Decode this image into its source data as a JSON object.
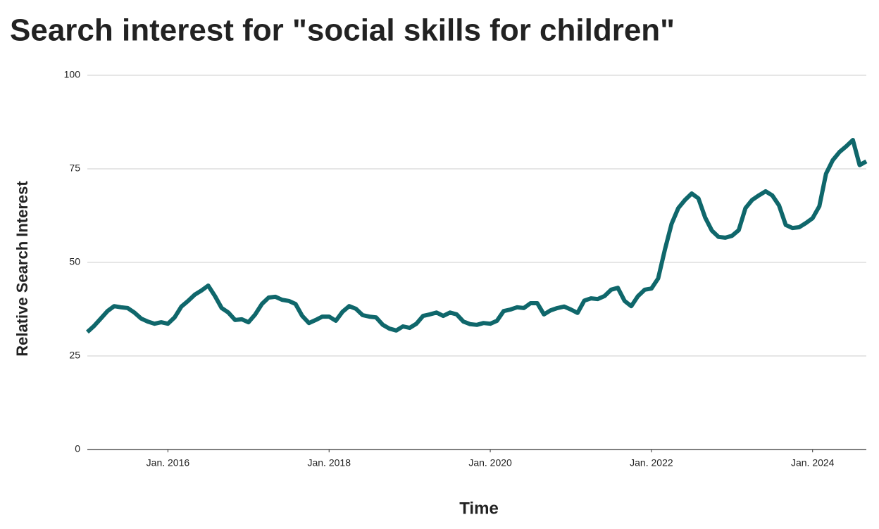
{
  "chart_data": {
    "type": "line",
    "title": "Search interest for \"social skills for children\"",
    "xlabel": "Time",
    "ylabel": "Relative Search Interest",
    "x": [
      "2015-01",
      "2015-02",
      "2015-03",
      "2015-04",
      "2015-05",
      "2015-06",
      "2015-07",
      "2015-08",
      "2015-09",
      "2015-10",
      "2015-11",
      "2015-12",
      "2016-01",
      "2016-02",
      "2016-03",
      "2016-04",
      "2016-05",
      "2016-06",
      "2016-07",
      "2016-08",
      "2016-09",
      "2016-10",
      "2016-11",
      "2016-12",
      "2017-01",
      "2017-02",
      "2017-03",
      "2017-04",
      "2017-05",
      "2017-06",
      "2017-07",
      "2017-08",
      "2017-09",
      "2017-10",
      "2017-11",
      "2017-12",
      "2018-01",
      "2018-02",
      "2018-03",
      "2018-04",
      "2018-05",
      "2018-06",
      "2018-07",
      "2018-08",
      "2018-09",
      "2018-10",
      "2018-11",
      "2018-12",
      "2019-01",
      "2019-02",
      "2019-03",
      "2019-04",
      "2019-05",
      "2019-06",
      "2019-07",
      "2019-08",
      "2019-09",
      "2019-10",
      "2019-11",
      "2019-12",
      "2020-01",
      "2020-02",
      "2020-03",
      "2020-04",
      "2020-05",
      "2020-06",
      "2020-07",
      "2020-08",
      "2020-09",
      "2020-10",
      "2020-11",
      "2020-12",
      "2021-01",
      "2021-02",
      "2021-03",
      "2021-04",
      "2021-05",
      "2021-06",
      "2021-07",
      "2021-08",
      "2021-09",
      "2021-10",
      "2021-11",
      "2021-12",
      "2022-01",
      "2022-02",
      "2022-03",
      "2022-04",
      "2022-05",
      "2022-06",
      "2022-07",
      "2022-08",
      "2022-09",
      "2022-10",
      "2022-11",
      "2022-12",
      "2023-01",
      "2023-02",
      "2023-03",
      "2023-04",
      "2023-05",
      "2023-06",
      "2023-07",
      "2023-08",
      "2023-09",
      "2023-10",
      "2023-11",
      "2023-12",
      "2024-01",
      "2024-02",
      "2024-03",
      "2024-04",
      "2024-05",
      "2024-06",
      "2024-07",
      "2024-08",
      "2024-09"
    ],
    "series": [
      {
        "name": "social skills for children",
        "color": "#0f676b",
        "values": [
          31.4,
          33,
          35,
          37,
          38.3,
          38,
          37.8,
          36.6,
          35,
          34.2,
          33.6,
          34,
          33.6,
          35.3,
          38.2,
          39.7,
          41.4,
          42.5,
          43.8,
          41,
          37.8,
          36.6,
          34.6,
          34.8,
          34,
          36.1,
          38.9,
          40.6,
          40.8,
          40,
          39.7,
          38.9,
          35.7,
          33.8,
          34.6,
          35.5,
          35.5,
          34.4,
          36.8,
          38.3,
          37.6,
          35.9,
          35.5,
          35.3,
          33.3,
          32.3,
          31.8,
          32.9,
          32.5,
          33.6,
          35.7,
          36.1,
          36.6,
          35.7,
          36.6,
          36.1,
          34.2,
          33.5,
          33.3,
          33.8,
          33.6,
          34.4,
          37,
          37.4,
          38,
          37.8,
          39.1,
          39.1,
          36.1,
          37.2,
          37.8,
          38.2,
          37.4,
          36.5,
          39.8,
          40.4,
          40.2,
          41,
          42.7,
          43.2,
          39.7,
          38.3,
          41,
          42.7,
          43,
          45.7,
          53.4,
          60.3,
          64.5,
          66.7,
          68.4,
          67.1,
          62,
          58.5,
          56.8,
          56.6,
          57.1,
          58.6,
          64.5,
          66.7,
          67.9,
          69,
          67.9,
          65.2,
          60,
          59.2,
          59.4,
          60.5,
          61.8,
          65,
          73.7,
          77.3,
          79.5,
          81,
          82.7,
          76,
          77
        ]
      }
    ],
    "xlim": [
      "2015-01",
      "2024-09"
    ],
    "xticks": [
      {
        "value": "2016-01",
        "label": "Jan. 2016"
      },
      {
        "value": "2018-01",
        "label": "Jan. 2018"
      },
      {
        "value": "2020-01",
        "label": "Jan. 2020"
      },
      {
        "value": "2022-01",
        "label": "Jan. 2022"
      },
      {
        "value": "2024-01",
        "label": "Jan. 2024"
      }
    ],
    "ylim": [
      0,
      100
    ],
    "yticks": [
      0,
      25,
      50,
      75,
      100
    ],
    "grid": true
  }
}
